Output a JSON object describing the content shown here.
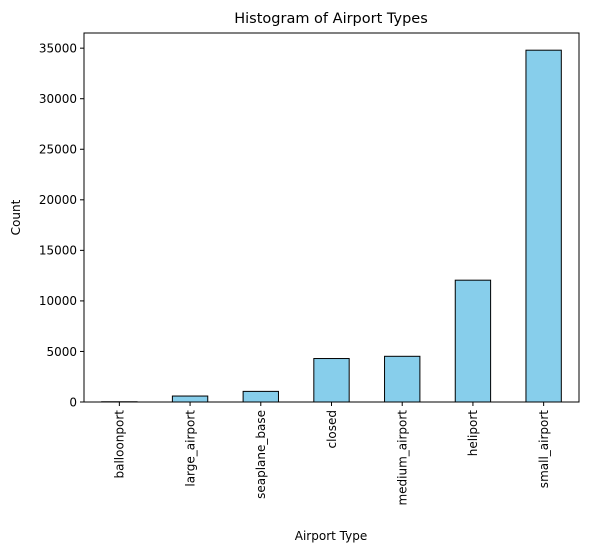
{
  "chart_data": {
    "type": "bar",
    "title": "Histogram of Airport Types",
    "xlabel": "Airport Type",
    "ylabel": "Count",
    "categories": [
      "balloonport",
      "large_airport",
      "seaplane_base",
      "closed",
      "medium_airport",
      "heliport",
      "small_airport"
    ],
    "values": [
      25,
      590,
      1050,
      4300,
      4520,
      12050,
      34800
    ],
    "ylim": [
      0,
      36500
    ],
    "yticks": [
      0,
      5000,
      10000,
      15000,
      20000,
      25000,
      30000,
      35000
    ],
    "grid": false,
    "legend": "none",
    "bar_color": "#87CEEB",
    "edge_color": "#000000"
  }
}
